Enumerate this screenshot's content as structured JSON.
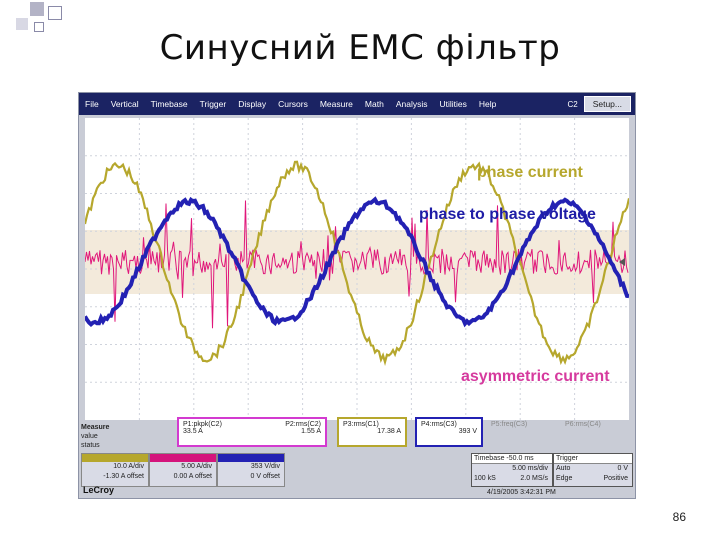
{
  "slide": {
    "title": "Синусний ЕМС фільтр",
    "page_number": "86"
  },
  "scope": {
    "menu": [
      "File",
      "Vertical",
      "Timebase",
      "Trigger",
      "Display",
      "Cursors",
      "Measure",
      "Math",
      "Analysis",
      "Utilities",
      "Help"
    ],
    "channel_label": "C2",
    "setup_button": "Setup...",
    "wave_labels": {
      "phase_current": "phase current",
      "phase_to_phase_voltage": "phase to phase voltage",
      "asymmetric_current": "asymmetric current"
    },
    "waves": {
      "phase_current_color": "#b6a72d",
      "voltage_color": "#2321b3",
      "asym_color": "#e0177a"
    },
    "measure": {
      "header": "Measure",
      "row_labels": [
        "value",
        "status"
      ],
      "params": [
        {
          "name": "P1:pkpk(C2)",
          "value": "33.5 A"
        },
        {
          "name": "P2:rms(C2)",
          "value": "1.55 A"
        },
        {
          "name": "P3:rms(C1)",
          "value": "17.38 A"
        },
        {
          "name": "P4:rms(C3)",
          "value": "393 V"
        },
        {
          "name": "P5:freq(C3)",
          "value": ""
        },
        {
          "name": "P6:rms(C4)",
          "value": ""
        }
      ]
    },
    "channels": [
      {
        "id": "C1",
        "scale": "10.0 A/div",
        "offset": "-1.30 A offset",
        "color": "#b6a72d"
      },
      {
        "id": "C2",
        "scale": "5.00 A/div",
        "offset": "0.00 A offset",
        "color": "#d4147c"
      },
      {
        "id": "C3",
        "scale": "353 V/div",
        "offset": "0 V offset",
        "color": "#2321b3"
      }
    ],
    "timebase": {
      "label": "Timebase -50.0 ms",
      "scale": "5.00 ms/div",
      "rate": "100 kS",
      "sample": "2.0 MS/s"
    },
    "trigger": {
      "label": "Trigger",
      "mode": "Auto",
      "level": "0 V",
      "type": "Edge",
      "slope": "Positive"
    },
    "brand": "LeCroy",
    "timestamp": "4/19/2005 3:42:31 PM"
  }
}
